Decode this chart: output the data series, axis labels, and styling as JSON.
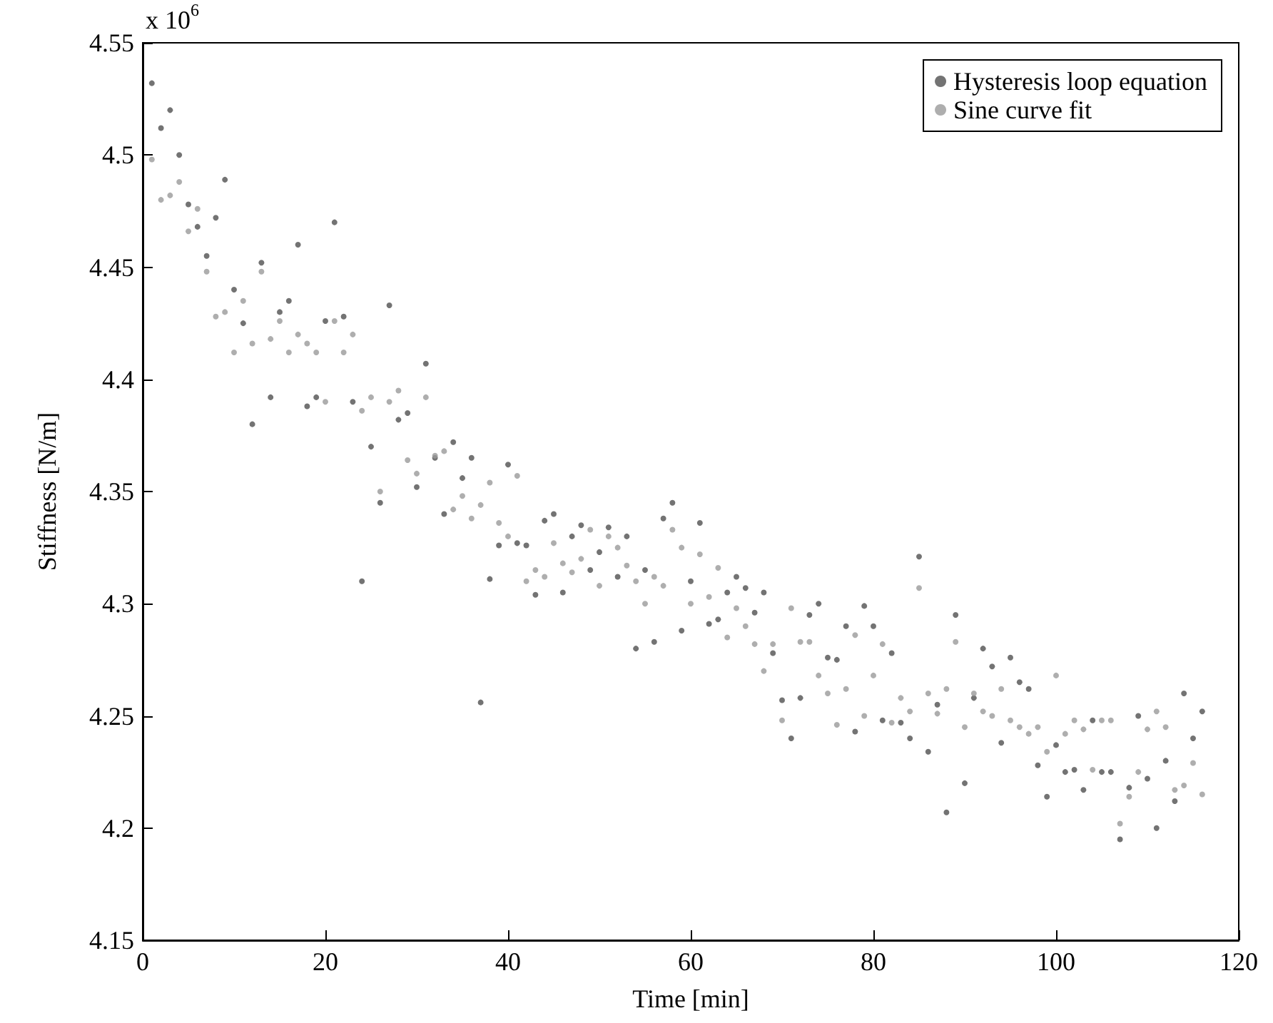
{
  "chart_data": {
    "type": "scatter",
    "xlabel": "Time [min]",
    "ylabel": "Stiffness [N/m]",
    "annotations": [
      "x 10$^{6}$"
    ],
    "x": [
      1,
      2,
      3,
      4,
      5,
      6,
      7,
      8,
      9,
      10,
      11,
      12,
      13,
      14,
      15,
      16,
      17,
      18,
      19,
      20,
      21,
      22,
      23,
      24,
      25,
      26,
      27,
      28,
      29,
      30,
      31,
      32,
      33,
      34,
      35,
      36,
      37,
      38,
      39,
      40,
      41,
      42,
      43,
      44,
      45,
      46,
      47,
      48,
      49,
      50,
      51,
      52,
      53,
      54,
      55,
      56,
      57,
      58,
      59,
      60,
      61,
      62,
      63,
      64,
      65,
      66,
      67,
      68,
      69,
      70,
      71,
      72,
      73,
      74,
      75,
      76,
      77,
      78,
      79,
      80,
      81,
      82,
      83,
      84,
      85,
      86,
      87,
      88,
      89,
      90,
      91,
      92,
      93,
      94,
      95,
      96,
      97,
      98,
      99,
      100,
      101,
      102,
      103,
      104,
      105,
      106,
      107,
      108,
      109,
      110,
      111,
      112,
      113,
      114,
      115,
      116
    ],
    "series": [
      {
        "name": "Hysteresis loop equation",
        "color": "#505050",
        "values": [
          4.532,
          4.512,
          4.52,
          4.5,
          4.478,
          4.468,
          4.455,
          4.472,
          4.489,
          4.44,
          4.425,
          4.38,
          4.452,
          4.392,
          4.43,
          4.435,
          4.46,
          4.388,
          4.392,
          4.426,
          4.47,
          4.428,
          4.39,
          4.31,
          4.37,
          4.345,
          4.433,
          4.382,
          4.385,
          4.352,
          4.407,
          4.365,
          4.34,
          4.372,
          4.356,
          4.365,
          4.256,
          4.311,
          4.326,
          4.362,
          4.327,
          4.326,
          4.304,
          4.337,
          4.34,
          4.305,
          4.33,
          4.335,
          4.315,
          4.323,
          4.334,
          4.312,
          4.33,
          4.28,
          4.315,
          4.283,
          4.338,
          4.345,
          4.288,
          4.31,
          4.336,
          4.291,
          4.293,
          4.305,
          4.312,
          4.307,
          4.296,
          4.305,
          4.278,
          4.257,
          4.24,
          4.258,
          4.295,
          4.3,
          4.276,
          4.275,
          4.29,
          4.243,
          4.299,
          4.29,
          4.248,
          4.278,
          4.247,
          4.24,
          4.321,
          4.234,
          4.255,
          4.207,
          4.295,
          4.22,
          4.258,
          4.28,
          4.272,
          4.238,
          4.276,
          4.265,
          4.262,
          4.228,
          4.214,
          4.237,
          4.225,
          4.226,
          4.217,
          4.248,
          4.225,
          4.225,
          4.195,
          4.218,
          4.25,
          4.222,
          4.2,
          4.23,
          4.212,
          4.26,
          4.24,
          4.252
        ]
      },
      {
        "name": "Sine curve fit",
        "color": "#9a9a9a",
        "values": [
          4.498,
          4.48,
          4.482,
          4.488,
          4.466,
          4.476,
          4.448,
          4.428,
          4.43,
          4.412,
          4.435,
          4.416,
          4.448,
          4.418,
          4.426,
          4.412,
          4.42,
          4.416,
          4.412,
          4.39,
          4.426,
          4.412,
          4.42,
          4.386,
          4.392,
          4.35,
          4.39,
          4.395,
          4.364,
          4.358,
          4.392,
          4.366,
          4.368,
          4.342,
          4.348,
          4.338,
          4.344,
          4.354,
          4.336,
          4.33,
          4.357,
          4.31,
          4.315,
          4.312,
          4.327,
          4.318,
          4.314,
          4.32,
          4.333,
          4.308,
          4.33,
          4.325,
          4.317,
          4.31,
          4.3,
          4.312,
          4.308,
          4.333,
          4.325,
          4.3,
          4.322,
          4.303,
          4.316,
          4.285,
          4.298,
          4.29,
          4.282,
          4.27,
          4.282,
          4.248,
          4.298,
          4.283,
          4.283,
          4.268,
          4.26,
          4.246,
          4.262,
          4.286,
          4.25,
          4.268,
          4.282,
          4.247,
          4.258,
          4.252,
          4.307,
          4.26,
          4.251,
          4.262,
          4.283,
          4.245,
          4.26,
          4.252,
          4.25,
          4.262,
          4.248,
          4.245,
          4.242,
          4.245,
          4.234,
          4.268,
          4.242,
          4.248,
          4.244,
          4.226,
          4.248,
          4.248,
          4.202,
          4.214,
          4.225,
          4.244,
          4.252,
          4.245,
          4.217,
          4.219,
          4.229,
          4.215
        ]
      }
    ],
    "xlim": [
      0,
      120
    ],
    "xticks": [
      0,
      20,
      40,
      60,
      80,
      100,
      120
    ],
    "ylim": [
      4.15,
      4.55
    ],
    "yticks": [
      4.15,
      4.2,
      4.25,
      4.3,
      4.35,
      4.4,
      4.45,
      4.5,
      4.55
    ],
    "grid": false,
    "legend": "top right",
    "marker": "circle"
  }
}
